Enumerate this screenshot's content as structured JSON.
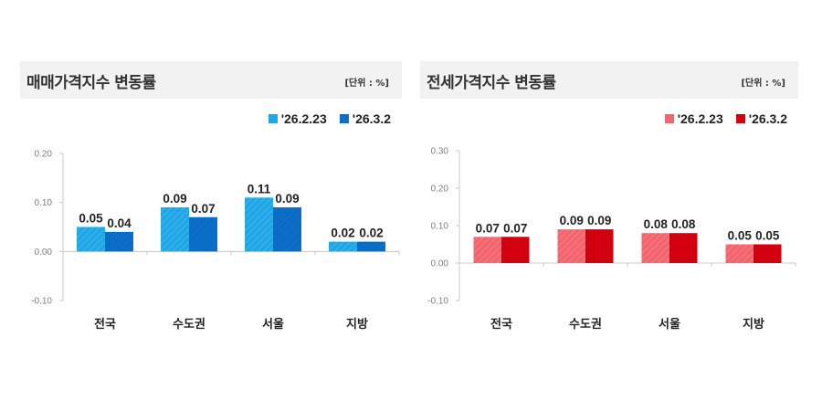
{
  "charts": [
    {
      "title": "매매가격지수 변동률",
      "unit": "[단위 : %]",
      "legend": [
        {
          "label": "'26.2.23",
          "color": "#1ea6e6"
        },
        {
          "label": "'26.3.2",
          "color": "#0b6fc8"
        }
      ]
    },
    {
      "title": "전세가격지수 변동률",
      "unit": "[단위 : %]",
      "legend": [
        {
          "label": "'26.2.23",
          "color": "#f4646c"
        },
        {
          "label": "'26.3.2",
          "color": "#d40010"
        }
      ]
    }
  ],
  "chart_data": [
    {
      "type": "bar",
      "title": "매매가격지수 변동률",
      "unit": "[단위 : %]",
      "categories": [
        "전국",
        "수도권",
        "서울",
        "지방"
      ],
      "series": [
        {
          "name": "'26.2.23",
          "values": [
            0.05,
            0.09,
            0.11,
            0.02
          ],
          "color": "#1ea6e6"
        },
        {
          "name": "'26.3.2",
          "values": [
            0.04,
            0.07,
            0.09,
            0.02
          ],
          "color": "#0b6fc8"
        }
      ],
      "yticks": [
        "0.20",
        "0.10",
        "0.00",
        "-0.10"
      ],
      "ylim": [
        -0.1,
        0.2
      ],
      "xlabel": "",
      "ylabel": "",
      "grid": false,
      "legend_position": "top-right"
    },
    {
      "type": "bar",
      "title": "전세가격지수 변동률",
      "unit": "[단위 : %]",
      "categories": [
        "전국",
        "수도권",
        "서울",
        "지방"
      ],
      "series": [
        {
          "name": "'26.2.23",
          "values": [
            0.07,
            0.09,
            0.08,
            0.05
          ],
          "color": "#f4646c"
        },
        {
          "name": "'26.3.2",
          "values": [
            0.07,
            0.09,
            0.08,
            0.05
          ],
          "color": "#d40010"
        }
      ],
      "yticks": [
        "0.30",
        "0.20",
        "0.10",
        "0.00",
        "-0.10"
      ],
      "ylim": [
        -0.1,
        0.3
      ],
      "xlabel": "",
      "ylabel": "",
      "grid": false,
      "legend_position": "top-right"
    }
  ]
}
